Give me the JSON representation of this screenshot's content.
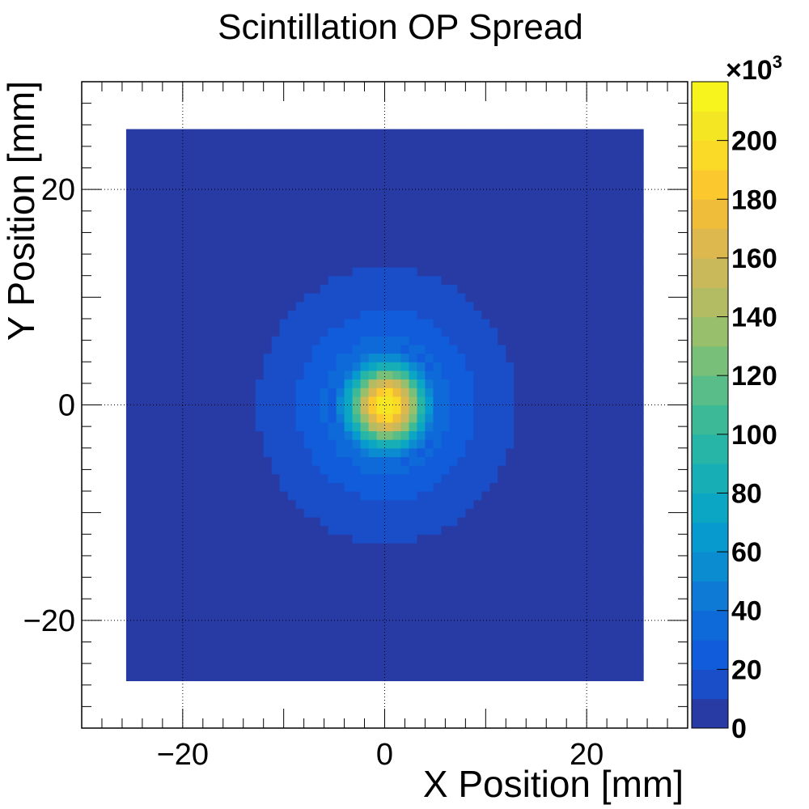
{
  "chart_data": {
    "type": "heatmap",
    "title": "Scintillation OP Spread",
    "xlabel": "X Position [mm]",
    "ylabel": "Y Position [mm]",
    "xlim": [
      -30,
      30
    ],
    "ylim": [
      -30,
      30
    ],
    "x_ticks": [
      -20,
      0,
      20
    ],
    "y_ticks": [
      -20,
      0,
      20
    ],
    "x_tick_labels": [
      "−20",
      "0",
      "20"
    ],
    "y_tick_labels": [
      "−20",
      "0",
      "20"
    ],
    "grid": true,
    "histogram": {
      "x_range": [
        -25.6,
        25.6
      ],
      "y_range": [
        -25.6,
        25.6
      ],
      "bins": 64,
      "background_value": 0,
      "peak_value": 212000,
      "peak_center": [
        0.2,
        0
      ],
      "core_radius": 6.4,
      "halo_radius": 12.8,
      "halo_value": 25000
    },
    "colorbar": {
      "range": [
        0,
        220000
      ],
      "ticks": [
        0,
        20000,
        40000,
        60000,
        80000,
        100000,
        120000,
        140000,
        160000,
        180000,
        200000
      ],
      "tick_labels": [
        "0",
        "20",
        "40",
        "60",
        "80",
        "100",
        "120",
        "140",
        "160",
        "180",
        "200"
      ],
      "multiplier_prefix": "×10",
      "multiplier_exponent": "3",
      "palette": [
        "#283ba5",
        "#1a4ec9",
        "#115cdb",
        "#0f6ad9",
        "#0f7ad5",
        "#0b8bd0",
        "#069ace",
        "#0aa6c4",
        "#18aeb5",
        "#26b5a7",
        "#3cba98",
        "#58bd88",
        "#78bf7a",
        "#98bf6c",
        "#b3bc62",
        "#cab95a",
        "#ddb84f",
        "#f0bd3a",
        "#fbc82d",
        "#fbd927",
        "#f5e623",
        "#f6f41c"
      ]
    }
  }
}
